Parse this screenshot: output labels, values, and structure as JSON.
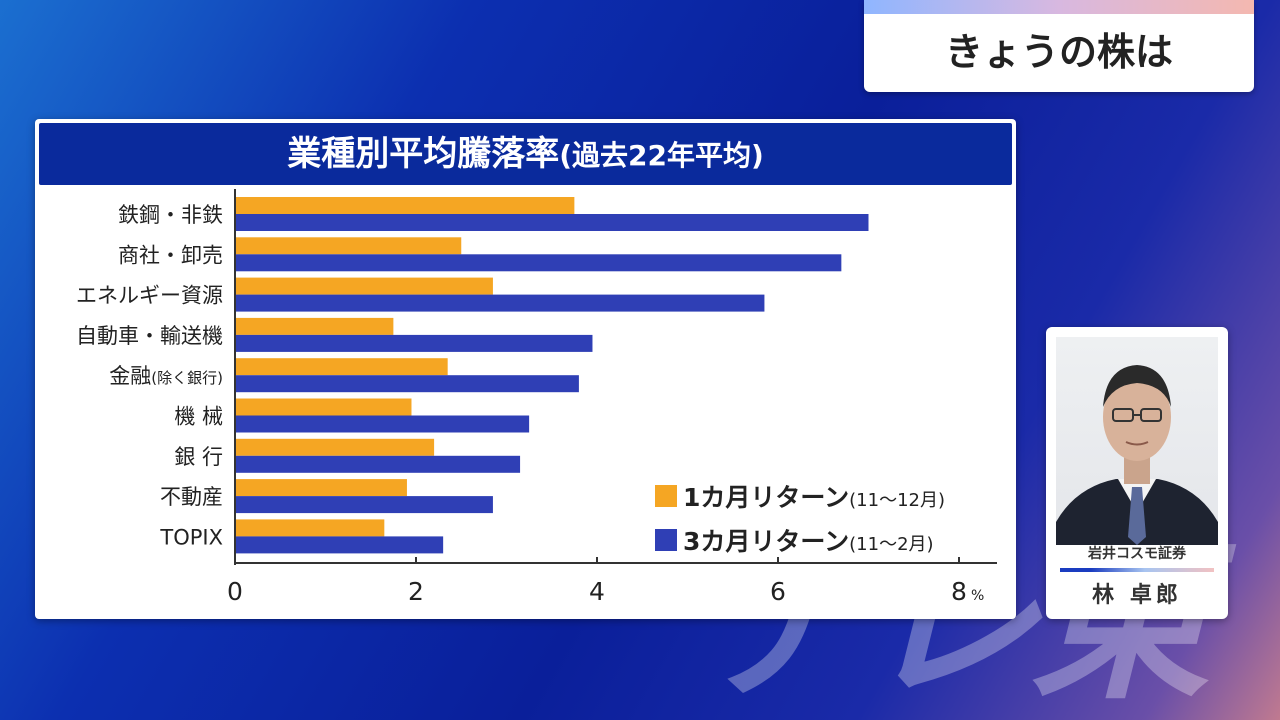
{
  "watermark": "テレ東",
  "title_card": {
    "text": "きょうの株は"
  },
  "chart_data": {
    "type": "bar",
    "orientation": "horizontal",
    "title": "業種別平均騰落率",
    "subtitle": "(過去22年平均)",
    "categories": [
      "鉄鋼・非鉄",
      "商社・卸売",
      "エネルギー資源",
      "自動車・輸送機",
      "金融",
      "機 械",
      "銀 行",
      "不動産",
      "TOPIX"
    ],
    "category_notes": [
      "",
      "",
      "",
      "",
      "(除く銀行)",
      "",
      "",
      "",
      ""
    ],
    "series": [
      {
        "name": "1カ月リターン",
        "period": "(11～12月)",
        "color": "#f5a623",
        "values": [
          3.75,
          2.5,
          2.85,
          1.75,
          2.35,
          1.95,
          2.2,
          1.9,
          1.65
        ]
      },
      {
        "name": "3カ月リターン",
        "period": "(11～2月)",
        "color": "#2f3fb5",
        "values": [
          7.0,
          6.7,
          5.85,
          3.95,
          3.8,
          3.25,
          3.15,
          2.85,
          2.3
        ]
      }
    ],
    "x_ticks": [
      "0",
      "2",
      "4",
      "6",
      "8"
    ],
    "x_unit": "%",
    "xlim": [
      0,
      8
    ],
    "grid": false,
    "legend_position": "bottom-right"
  },
  "presenter": {
    "firm": "岩井コスモ証券",
    "name": "林 卓郎"
  }
}
